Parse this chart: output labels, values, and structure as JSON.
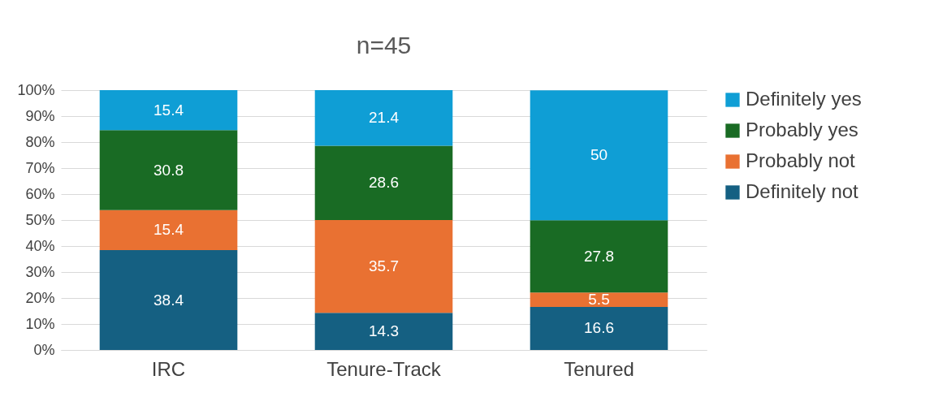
{
  "chart_data": {
    "type": "bar",
    "title": "n=45",
    "stacked": true,
    "data_labels": true,
    "legend": "right",
    "grid": "y",
    "categories": [
      "IRC",
      "Tenure-Track",
      "Tenured"
    ],
    "series": [
      {
        "name": "Definitely not",
        "color": "#156082",
        "values": [
          38.4,
          14.3,
          16.6
        ]
      },
      {
        "name": "Probably not",
        "color": "#e97132",
        "values": [
          15.4,
          35.7,
          5.5
        ]
      },
      {
        "name": "Probably yes",
        "color": "#196b24",
        "values": [
          30.8,
          28.6,
          27.8
        ]
      },
      {
        "name": "Definitely yes",
        "color": "#0f9ed5",
        "values": [
          15.4,
          21.4,
          50
        ]
      }
    ],
    "ylim": [
      0,
      100
    ],
    "yticks": [
      {
        "value": 0,
        "label": "0%"
      },
      {
        "value": 10,
        "label": "10%"
      },
      {
        "value": 20,
        "label": "20%"
      },
      {
        "value": 30,
        "label": "30%"
      },
      {
        "value": 40,
        "label": "40%"
      },
      {
        "value": 50,
        "label": "50%"
      },
      {
        "value": 60,
        "label": "60%"
      },
      {
        "value": 70,
        "label": "70%"
      },
      {
        "value": 80,
        "label": "80%"
      },
      {
        "value": 90,
        "label": "90%"
      },
      {
        "value": 100,
        "label": "100%"
      }
    ]
  }
}
